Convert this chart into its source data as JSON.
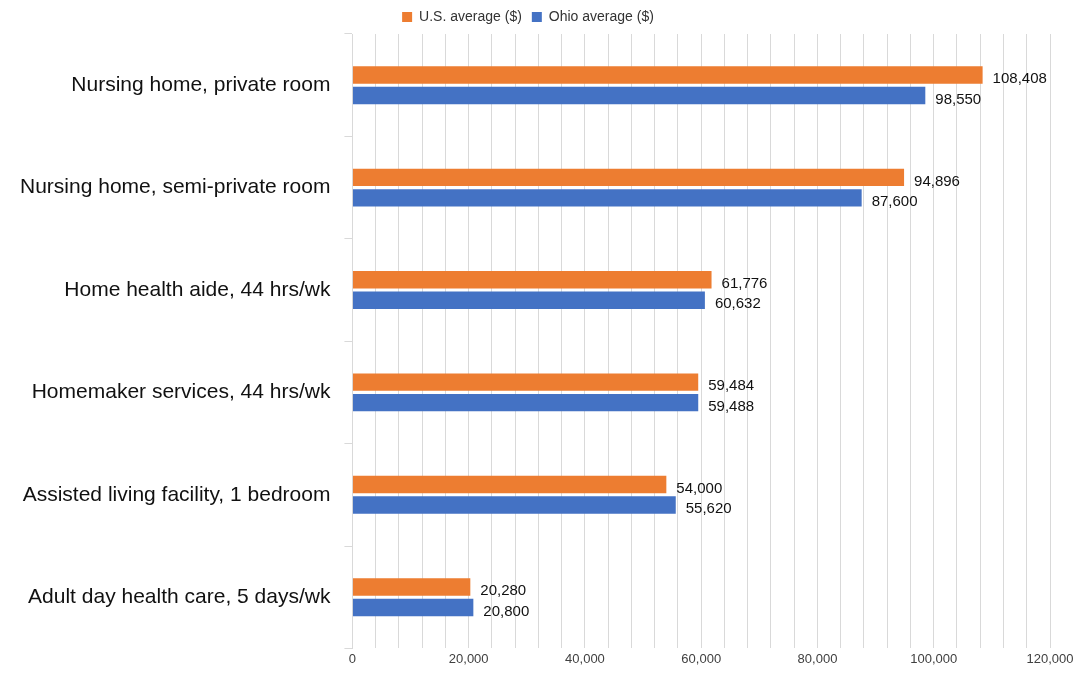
{
  "chart_data": {
    "type": "bar",
    "orientation": "horizontal",
    "categories": [
      "Nursing home, private room",
      "Nursing home, semi-private room",
      "Home health aide, 44 hrs/wk",
      "Homemaker services, 44 hrs/wk",
      "Assisted living facility, 1 bedroom",
      "Adult day health care, 5 days/wk"
    ],
    "series": [
      {
        "name": "U.S. average ($)",
        "color": "#ed7d31",
        "values": [
          108408,
          94896,
          61776,
          59484,
          54000,
          20280
        ],
        "value_labels": [
          "108,408",
          "94,896",
          "61,776",
          "59,484",
          "54,000",
          "20,280"
        ]
      },
      {
        "name": "Ohio average ($)",
        "color": "#4472c4",
        "values": [
          98550,
          87600,
          60632,
          59488,
          55620,
          20800
        ],
        "value_labels": [
          "98,550",
          "87,600",
          "60,632",
          "59,488",
          "55,620",
          "20,800"
        ]
      }
    ],
    "xlim": [
      0,
      120000
    ],
    "xticks": [
      0,
      {
        "value": 4000,
        "label": null
      },
      {
        "value": 8000,
        "label": null
      },
      {
        "value": 12000,
        "label": null
      },
      {
        "value": 16000,
        "label": null
      },
      {
        "value": 20000,
        "label": "20,000"
      },
      {
        "value": 24000,
        "label": null
      },
      {
        "value": 28000,
        "label": null
      },
      {
        "value": 32000,
        "label": null
      },
      {
        "value": 36000,
        "label": null
      },
      {
        "value": 40000,
        "label": "40,000"
      },
      {
        "value": 44000,
        "label": null
      },
      {
        "value": 48000,
        "label": null
      },
      {
        "value": 52000,
        "label": null
      },
      {
        "value": 56000,
        "label": null
      },
      {
        "value": 60000,
        "label": "60,000"
      },
      {
        "value": 64000,
        "label": null
      },
      {
        "value": 68000,
        "label": null
      },
      {
        "value": 72000,
        "label": null
      },
      {
        "value": 76000,
        "label": null
      },
      {
        "value": 80000,
        "label": "80,000"
      },
      {
        "value": 84000,
        "label": null
      },
      {
        "value": 88000,
        "label": null
      },
      {
        "value": 92000,
        "label": null
      },
      {
        "value": 96000,
        "label": null
      },
      {
        "value": 100000,
        "label": "100,000"
      },
      {
        "value": 104000,
        "label": null
      },
      {
        "value": 108000,
        "label": null
      },
      {
        "value": 112000,
        "label": null
      },
      {
        "value": 116000,
        "label": null
      },
      {
        "value": 120000,
        "label": "120,000"
      }
    ],
    "grid": "x",
    "legend": "top"
  }
}
